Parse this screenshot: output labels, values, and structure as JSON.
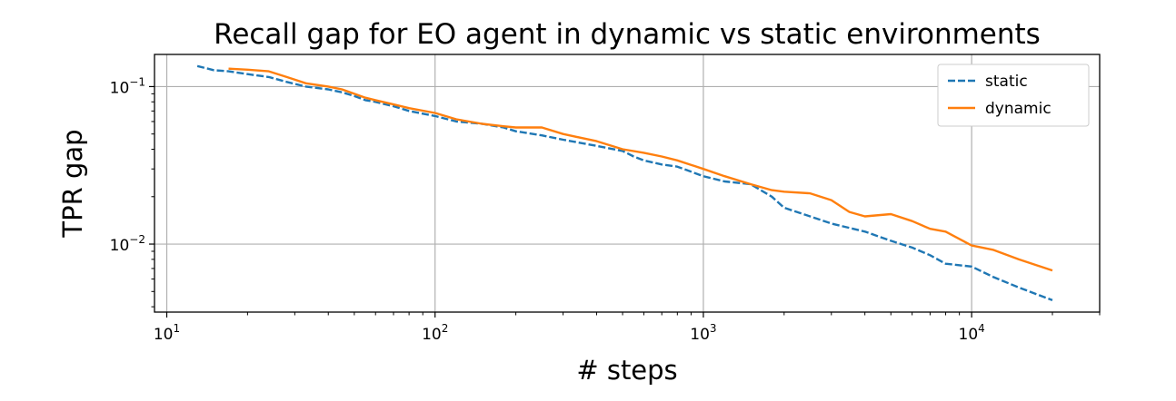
{
  "chart_data": {
    "type": "line",
    "title": "Recall gap for EO agent in dynamic vs static environments",
    "xlabel": "# steps",
    "ylabel": "TPR gap",
    "xscale": "log",
    "yscale": "log",
    "xlim": [
      9,
      30000
    ],
    "ylim": [
      0.0037,
      0.16
    ],
    "grid": true,
    "legend_position": "top-right",
    "x_ticks": [
      {
        "base": "10",
        "exp": "1",
        "value": 10
      },
      {
        "base": "10",
        "exp": "2",
        "value": 100
      },
      {
        "base": "10",
        "exp": "3",
        "value": 1000
      },
      {
        "base": "10",
        "exp": "4",
        "value": 10000
      }
    ],
    "y_ticks": [
      {
        "base": "10",
        "exp": "−1",
        "value": 0.1
      },
      {
        "base": "10",
        "exp": "−2",
        "value": 0.01
      }
    ],
    "series": [
      {
        "name": "static",
        "color": "#1f77b4",
        "dash": true,
        "x": [
          13,
          15,
          17,
          20,
          24,
          28,
          33,
          40,
          45,
          50,
          55,
          60,
          70,
          80,
          100,
          120,
          150,
          180,
          200,
          250,
          300,
          400,
          500,
          550,
          600,
          700,
          800,
          1000,
          1200,
          1500,
          1800,
          2000,
          2500,
          3000,
          4000,
          5000,
          6000,
          7000,
          8000,
          10000,
          12000,
          15000,
          20000
        ],
        "y": [
          0.135,
          0.127,
          0.125,
          0.12,
          0.115,
          0.107,
          0.1,
          0.096,
          0.092,
          0.087,
          0.082,
          0.08,
          0.075,
          0.07,
          0.065,
          0.06,
          0.058,
          0.055,
          0.052,
          0.049,
          0.046,
          0.042,
          0.039,
          0.036,
          0.034,
          0.032,
          0.031,
          0.027,
          0.025,
          0.024,
          0.02,
          0.017,
          0.015,
          0.0135,
          0.012,
          0.0105,
          0.0095,
          0.0085,
          0.0075,
          0.0072,
          0.0062,
          0.0053,
          0.0044
        ]
      },
      {
        "name": "dynamic",
        "color": "#ff7f0e",
        "dash": false,
        "x": [
          17,
          20,
          24,
          28,
          33,
          40,
          45,
          50,
          55,
          60,
          70,
          80,
          100,
          120,
          150,
          180,
          200,
          250,
          300,
          400,
          500,
          600,
          700,
          800,
          1000,
          1200,
          1500,
          1800,
          2000,
          2500,
          3000,
          3500,
          4000,
          5000,
          6000,
          7000,
          8000,
          10000,
          12000,
          15000,
          20000
        ],
        "y": [
          0.13,
          0.128,
          0.125,
          0.115,
          0.105,
          0.1,
          0.096,
          0.09,
          0.085,
          0.082,
          0.077,
          0.073,
          0.068,
          0.062,
          0.058,
          0.056,
          0.055,
          0.055,
          0.05,
          0.045,
          0.04,
          0.038,
          0.036,
          0.034,
          0.03,
          0.027,
          0.024,
          0.022,
          0.0215,
          0.021,
          0.019,
          0.016,
          0.015,
          0.0155,
          0.014,
          0.0125,
          0.012,
          0.0098,
          0.0092,
          0.008,
          0.0068
        ]
      }
    ]
  }
}
